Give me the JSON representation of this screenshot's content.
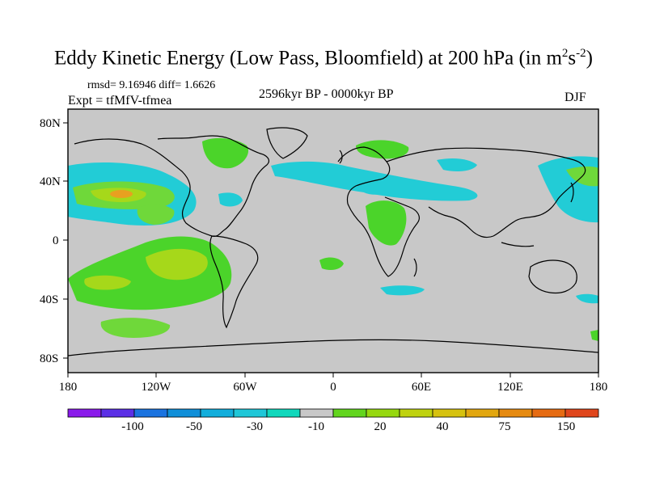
{
  "title": {
    "text": "Eddy Kinetic Energy (Low Pass, Bloomfield) at 200 hPa (in m",
    "sup1": "2",
    "mid": "s",
    "sup2": "-2",
    "end": ")"
  },
  "stats": "rmsd= 9.16946 diff= 1.6626",
  "experiment": "Expt = tfMfV-tfmea",
  "period": "2596kyr BP - 0000kyr BP",
  "season": "DJF",
  "axes": {
    "lat_labels": [
      "80N",
      "40N",
      "0",
      "40S",
      "80S"
    ],
    "lon_labels": [
      "180",
      "120W",
      "60W",
      "0",
      "60E",
      "120E",
      "180"
    ]
  },
  "colorbar": {
    "colors": [
      "#8a1aeb",
      "#5b2fe6",
      "#1a73e0",
      "#0f8fd9",
      "#12aedc",
      "#1fc7d8",
      "#10d8bc",
      "#c8c8c8",
      "#62d51e",
      "#96d80f",
      "#bfd20f",
      "#d6c20f",
      "#e2a70f",
      "#e68a10",
      "#e66b12",
      "#e0461c"
    ],
    "labels": [
      "-100",
      "-50",
      "-30",
      "-10",
      "20",
      "40",
      "75",
      "150"
    ]
  },
  "colors": {
    "land_bg": "#c8c8c8",
    "cyan": "#22ccd6",
    "light_green": "#6fd83a",
    "green": "#4bd42a",
    "yellow_green": "#a6d81a",
    "orange": "#e8a020"
  }
}
